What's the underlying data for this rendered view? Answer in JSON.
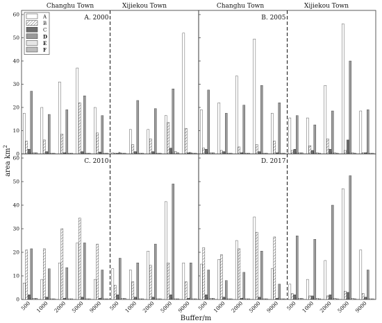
{
  "figure": {
    "ylabel": "area km",
    "ylabel_sup": "2",
    "xlabel": "Buffer/m",
    "town_left": "Changhu Town",
    "town_right": "Xijiekou Town"
  },
  "colors": {
    "A": "#ffffff",
    "B": "#ffffff",
    "C": "#6e6e6e",
    "D": "#9a9a9a",
    "E": "#e6e6e6",
    "F": "#bdbdbd",
    "stroke": "#333333"
  },
  "chart_data": [
    {
      "type": "bar",
      "title": "A. 2000",
      "position": "top-left",
      "categories": [
        "500",
        "1000",
        "2000",
        "5000",
        "9000"
      ],
      "ylim": [
        0,
        60
      ],
      "yticks": [
        0,
        10,
        20,
        30,
        40,
        50,
        60
      ],
      "legend": {
        "entries": [
          "A",
          "B",
          "C",
          "D",
          "E",
          "F"
        ],
        "placement": "top-left"
      },
      "series": [
        {
          "name": "A",
          "values": [
            17.5,
            20.0,
            31.0,
            37.0,
            20.0
          ]
        },
        {
          "name": "B",
          "values": [
            5.5,
            6.0,
            8.5,
            22.0,
            9.0
          ]
        },
        {
          "name": "C",
          "values": [
            2.0,
            1.0,
            0.5,
            1.0,
            0.8
          ]
        },
        {
          "name": "D",
          "values": [
            27.0,
            17.0,
            19.0,
            25.0,
            16.5
          ]
        },
        {
          "name": "E",
          "values": [
            0.5,
            0.3,
            0.3,
            0.3,
            0.3
          ]
        },
        {
          "name": "F",
          "values": [
            0.5,
            0.3,
            0.3,
            0.3,
            0.3
          ]
        }
      ]
    },
    {
      "type": "bar",
      "title": "A. 2000",
      "position": "top-right",
      "categories": [
        "500",
        "1000",
        "2000",
        "5000",
        "9000"
      ],
      "ylim": [
        0,
        60
      ],
      "series": [
        {
          "name": "A",
          "values": [
            0.5,
            10.5,
            10.5,
            16.5,
            52.0
          ]
        },
        {
          "name": "B",
          "values": [
            0.3,
            4.0,
            6.5,
            13.5,
            11.0
          ]
        },
        {
          "name": "C",
          "values": [
            0.3,
            1.0,
            1.0,
            2.5,
            0.5
          ]
        },
        {
          "name": "D",
          "values": [
            0.5,
            23.0,
            19.5,
            28.0,
            0.5
          ]
        },
        {
          "name": "E",
          "values": [
            0.3,
            0.3,
            0.3,
            1.0,
            0.3
          ]
        },
        {
          "name": "F",
          "values": [
            0.3,
            0.3,
            0.3,
            0.5,
            0.3
          ]
        }
      ]
    },
    {
      "type": "bar",
      "title": "B. 2005",
      "position": "top-left",
      "categories": [
        "500",
        "1000",
        "2000",
        "5000",
        "9000"
      ],
      "ylim": [
        0,
        60
      ],
      "series": [
        {
          "name": "A",
          "values": [
            19.0,
            22.0,
            33.5,
            49.5,
            17.5
          ]
        },
        {
          "name": "B",
          "values": [
            2.5,
            1.5,
            3.0,
            4.0,
            5.5
          ]
        },
        {
          "name": "C",
          "values": [
            2.0,
            1.0,
            0.5,
            1.0,
            0.5
          ]
        },
        {
          "name": "D",
          "values": [
            27.5,
            17.5,
            21.0,
            29.5,
            22.0
          ]
        },
        {
          "name": "E",
          "values": [
            0.5,
            0.3,
            0.3,
            0.3,
            0.3
          ]
        },
        {
          "name": "F",
          "values": [
            0.5,
            0.3,
            0.3,
            0.3,
            0.3
          ]
        }
      ]
    },
    {
      "type": "bar",
      "title": "B. 2005",
      "position": "top-right",
      "categories": [
        "500",
        "1000",
        "2000",
        "5000",
        "9000"
      ],
      "ylim": [
        0,
        60
      ],
      "series": [
        {
          "name": "A",
          "values": [
            15.5,
            15.5,
            29.5,
            56.0,
            18.5
          ]
        },
        {
          "name": "B",
          "values": [
            1.5,
            3.5,
            6.5,
            1.5,
            0.5
          ]
        },
        {
          "name": "C",
          "values": [
            2.0,
            1.5,
            2.0,
            6.0,
            0.5
          ]
        },
        {
          "name": "D",
          "values": [
            16.5,
            12.5,
            18.5,
            40.0,
            19.0
          ]
        },
        {
          "name": "E",
          "values": [
            0.5,
            0.5,
            0.5,
            0.5,
            0.3
          ]
        },
        {
          "name": "F",
          "values": [
            0.5,
            0.3,
            0.3,
            0.3,
            0.3
          ]
        }
      ]
    },
    {
      "type": "bar",
      "title": "C. 2010",
      "position": "top-left",
      "categories": [
        "500",
        "1000",
        "2000",
        "5000",
        "9000"
      ],
      "ylim": [
        0,
        60
      ],
      "series": [
        {
          "name": "A",
          "values": [
            7.0,
            8.5,
            15.5,
            24.0,
            8.5
          ]
        },
        {
          "name": "B",
          "values": [
            21.0,
            21.5,
            30.0,
            34.5,
            23.5
          ]
        },
        {
          "name": "C",
          "values": [
            2.0,
            1.0,
            0.5,
            1.0,
            0.5
          ]
        },
        {
          "name": "D",
          "values": [
            21.5,
            13.0,
            13.5,
            24.0,
            12.5
          ]
        },
        {
          "name": "E",
          "values": [
            0.5,
            0.3,
            0.3,
            0.3,
            0.3
          ]
        },
        {
          "name": "F",
          "values": [
            0.5,
            0.3,
            0.3,
            0.3,
            0.3
          ]
        }
      ]
    },
    {
      "type": "bar",
      "title": "C. 2010",
      "position": "top-right",
      "categories": [
        "500",
        "1000",
        "2000",
        "5000",
        "9000"
      ],
      "ylim": [
        0,
        60
      ],
      "series": [
        {
          "name": "A",
          "values": [
            13.0,
            12.5,
            20.5,
            41.5,
            15.5
          ]
        },
        {
          "name": "B",
          "values": [
            6.0,
            7.5,
            14.5,
            15.5,
            7.5
          ]
        },
        {
          "name": "C",
          "values": [
            2.0,
            1.0,
            1.0,
            2.0,
            0.5
          ]
        },
        {
          "name": "D",
          "values": [
            17.5,
            15.5,
            23.5,
            49.0,
            15.5
          ]
        },
        {
          "name": "E",
          "values": [
            0.5,
            0.3,
            0.3,
            0.3,
            0.3
          ]
        },
        {
          "name": "F",
          "values": [
            0.5,
            0.3,
            0.3,
            0.3,
            0.3
          ]
        }
      ]
    },
    {
      "type": "bar",
      "title": "D. 2017",
      "position": "top-left",
      "categories": [
        "500",
        "1000",
        "2000",
        "5000",
        "9000"
      ],
      "ylim": [
        0,
        60
      ],
      "series": [
        {
          "name": "A",
          "values": [
            15.0,
            17.0,
            25.0,
            35.0,
            13.0
          ]
        },
        {
          "name": "B",
          "values": [
            22.0,
            19.0,
            21.5,
            28.5,
            26.5
          ]
        },
        {
          "name": "C",
          "values": [
            2.0,
            1.0,
            0.5,
            1.0,
            0.5
          ]
        },
        {
          "name": "D",
          "values": [
            12.5,
            8.0,
            11.5,
            20.5,
            6.5
          ]
        },
        {
          "name": "E",
          "values": [
            0.5,
            0.3,
            0.3,
            0.3,
            0.3
          ]
        },
        {
          "name": "F",
          "values": [
            0.5,
            0.3,
            0.3,
            0.3,
            0.3
          ]
        }
      ]
    },
    {
      "type": "bar",
      "title": "D. 2017",
      "position": "top-right",
      "categories": [
        "500",
        "1000",
        "2000",
        "5000",
        "9000"
      ],
      "ylim": [
        0,
        60
      ],
      "series": [
        {
          "name": "A",
          "values": [
            6.5,
            8.5,
            16.5,
            47.0,
            21.0
          ]
        },
        {
          "name": "B",
          "values": [
            2.5,
            1.5,
            1.5,
            3.5,
            2.5
          ]
        },
        {
          "name": "C",
          "values": [
            2.0,
            1.5,
            2.0,
            3.0,
            1.0
          ]
        },
        {
          "name": "D",
          "values": [
            27.0,
            25.5,
            40.0,
            52.5,
            12.5
          ]
        },
        {
          "name": "E",
          "values": [
            0.5,
            0.5,
            0.5,
            0.5,
            0.3
          ]
        },
        {
          "name": "F",
          "values": [
            0.5,
            0.3,
            0.3,
            0.3,
            0.3
          ]
        }
      ]
    }
  ]
}
